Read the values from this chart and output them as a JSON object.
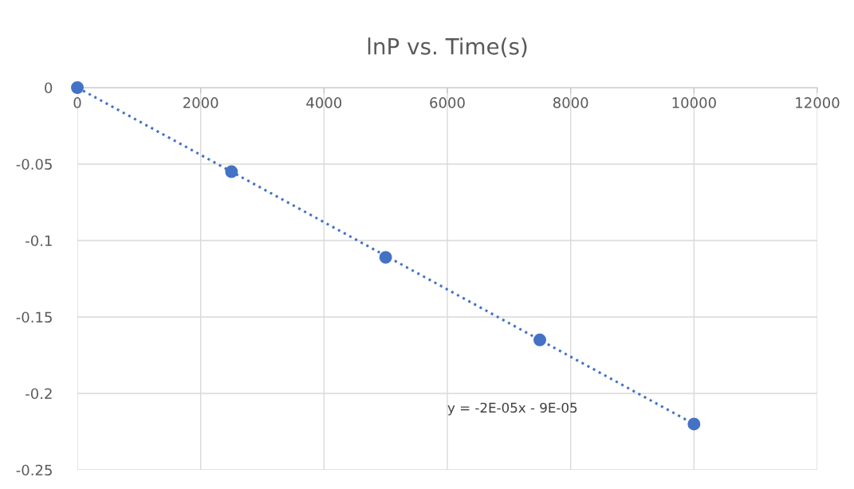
{
  "chart_data": {
    "type": "scatter",
    "title": "lnP vs. Time(s)",
    "series": [
      {
        "color": "#4472c4",
        "x": [
          0,
          2500,
          5000,
          7500,
          10000
        ],
        "values": [
          0,
          -0.055,
          -0.111,
          -0.165,
          -0.22
        ],
        "marker": "circle"
      },
      {
        "type": "line",
        "color": "#4472c4",
        "x": [
          0,
          10000
        ],
        "values": [
          0,
          -0.22
        ],
        "line_style": "dotted"
      }
    ],
    "xlim": [
      0,
      12000
    ],
    "xticks": [
      0,
      2000,
      4000,
      6000,
      8000,
      10000,
      12000
    ],
    "ylim": [
      -0.25,
      0
    ],
    "yticks": [
      -0.25,
      -0.2,
      -0.15,
      -0.1,
      -0.05,
      0
    ],
    "grid": true,
    "annotations": [
      "y = -2E-05x - 9E-05"
    ]
  }
}
